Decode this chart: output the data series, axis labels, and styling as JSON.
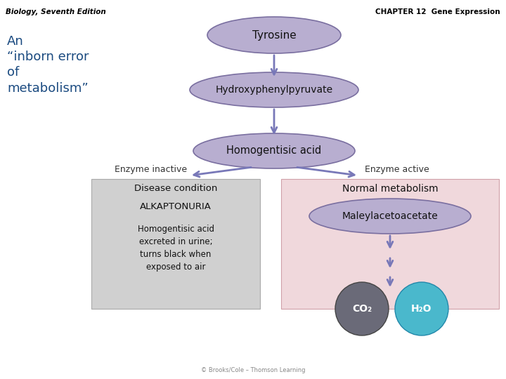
{
  "title_left": "Biology, Seventh Edition",
  "title_right": "CHAPTER 12  Gene Expression",
  "subtitle": "An\n“inborn error\nof\nmetabolism”",
  "background_color": "#ffffff",
  "ellipse_color": "#b8aed0",
  "ellipse_edge_color": "#7a6fa0",
  "arrow_color": "#7878b8",
  "left_box_color": "#d0d0d0",
  "right_box_color": "#f0d8dc",
  "copyright": "© Brooks/Cole – Thomson Learning",
  "subtitle_color": "#1a4a80",
  "title_color": "#000000",
  "co2_color": "#6a6a78",
  "h2o_color": "#4ab8cc"
}
